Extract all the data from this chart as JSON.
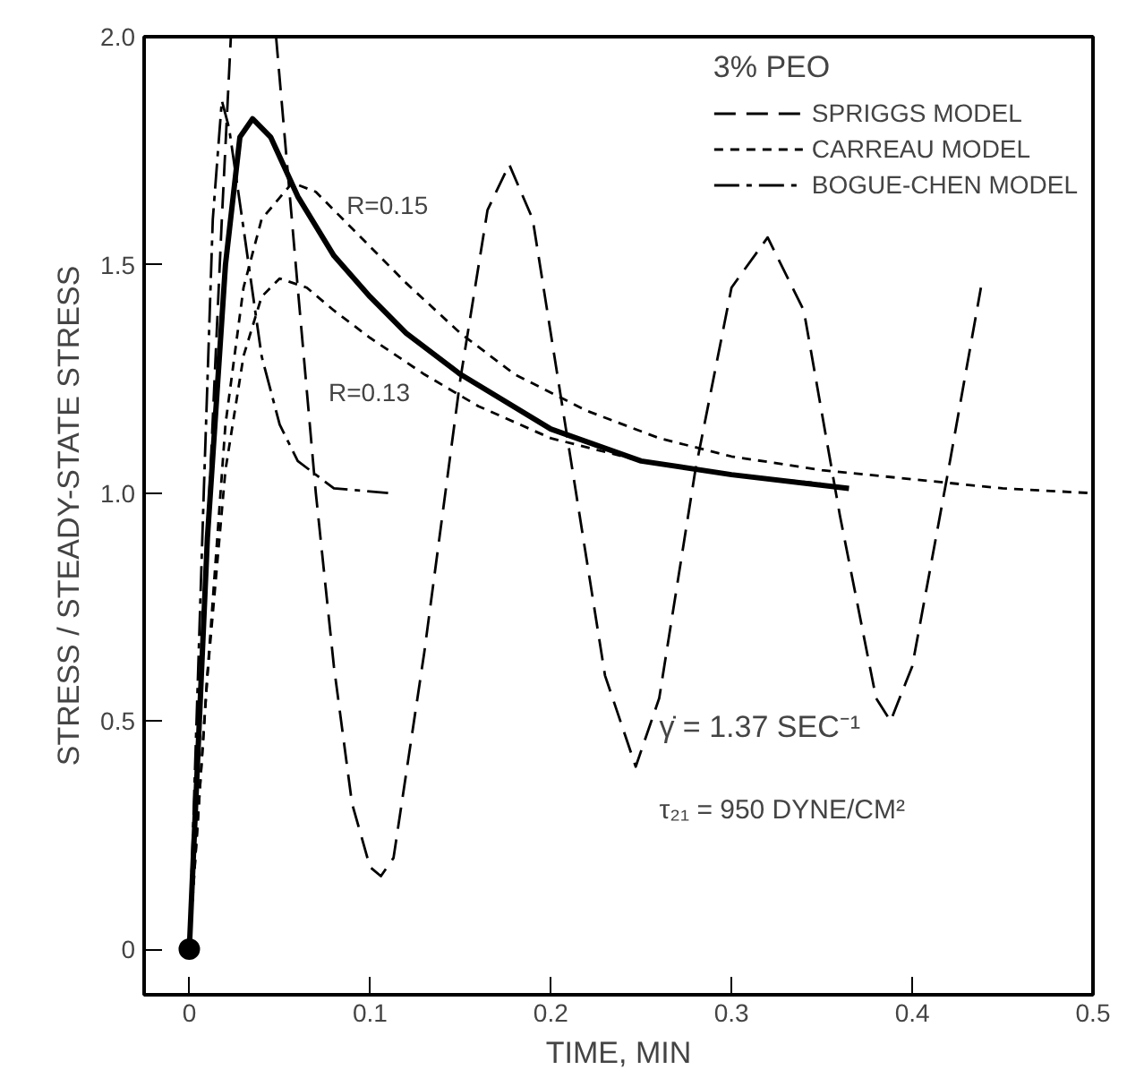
{
  "chart_data": {
    "type": "line",
    "xlabel": "TIME, MIN",
    "ylabel": "STRESS / STEADY-STATE STRESS",
    "legend_title": "3% PEO",
    "xlim": [
      -0.025,
      0.5
    ],
    "ylim": [
      -0.1,
      2.0
    ],
    "xticks": [
      0,
      0.1,
      0.2,
      0.3,
      0.4,
      0.5
    ],
    "yticks": [
      0,
      0.5,
      {
        "value": 1,
        "label": "1.0"
      },
      1.5,
      {
        "value": 2,
        "label": "2.0"
      }
    ],
    "grid": false,
    "legend": "top right",
    "series": [
      {
        "name": "SPRIGGS MODEL",
        "color": "#000000",
        "line_style": "dashed",
        "x": [
          0,
          0.01,
          0.018,
          0.023,
          0.035,
          0.048,
          0.06,
          0.07,
          0.08,
          0.09,
          0.1,
          0.106,
          0.113,
          0.13,
          0.15,
          0.165,
          0.177,
          0.19,
          0.21,
          0.23,
          0.247,
          0.26,
          0.28,
          0.3,
          0.32,
          0.34,
          0.36,
          0.38,
          0.388,
          0.4,
          0.42,
          0.438
        ],
        "values": [
          0,
          0.9,
          1.6,
          2.0,
          null,
          2.0,
          1.45,
          1.0,
          0.62,
          0.32,
          0.18,
          0.16,
          0.2,
          0.65,
          1.25,
          1.62,
          1.72,
          1.6,
          1.1,
          0.6,
          0.4,
          0.55,
          1.05,
          1.45,
          1.56,
          1.4,
          0.95,
          0.55,
          0.5,
          0.62,
          1.05,
          1.45
        ]
      },
      {
        "name": "CARREAU MODEL",
        "color": "#000000",
        "line_style": "dotted",
        "x": [
          0,
          0.01,
          0.02,
          0.03,
          0.04,
          0.057,
          0.07,
          0.09,
          0.12,
          0.15,
          0.18,
          0.22,
          0.26,
          0.3,
          0.35,
          0.4,
          0.45,
          0.497
        ],
        "values": [
          0,
          0.6,
          1.15,
          1.45,
          1.6,
          1.68,
          1.66,
          1.58,
          1.46,
          1.35,
          1.26,
          1.18,
          1.12,
          1.08,
          1.05,
          1.03,
          1.01,
          1.0
        ]
      },
      {
        "name": "BOGUE-CHEN MODEL",
        "color": "#000000",
        "line_style": "dashdot",
        "x": [
          0,
          0.008,
          0.013,
          0.018,
          0.022,
          0.03,
          0.04,
          0.05,
          0.06,
          0.07,
          0.08,
          0.11
        ],
        "values": [
          0,
          1.0,
          1.6,
          1.86,
          1.8,
          1.58,
          1.3,
          1.15,
          1.07,
          1.04,
          1.01,
          1.0
        ]
      },
      {
        "color": "#000000",
        "line_style": "dotted",
        "x": [
          0,
          0.01,
          0.02,
          0.03,
          0.04,
          0.05,
          0.065,
          0.08,
          0.1,
          0.13,
          0.16,
          0.2,
          0.25,
          0.3,
          0.35
        ],
        "values": [
          0,
          0.6,
          1.05,
          1.3,
          1.43,
          1.47,
          1.45,
          1.4,
          1.34,
          1.26,
          1.19,
          1.12,
          1.07,
          1.04,
          1.02
        ]
      },
      {
        "color": "#000000",
        "line_style": "solid",
        "x": [
          0,
          0.01,
          0.02,
          0.028,
          0.035,
          0.045,
          0.06,
          0.08,
          0.1,
          0.12,
          0.15,
          0.2,
          0.25,
          0.3,
          0.365
        ],
        "values": [
          0,
          0.9,
          1.5,
          1.78,
          1.82,
          1.78,
          1.65,
          1.52,
          1.43,
          1.35,
          1.26,
          1.14,
          1.07,
          1.04,
          1.01
        ]
      },
      {
        "type": "scatter",
        "marker": "circle",
        "color": "#000000",
        "x": [
          0
        ],
        "values": [
          0
        ]
      }
    ],
    "annotations": [
      "R=0.15",
      "R=0.13",
      "γ̇ = 1.37 SEC⁻¹",
      "τ₂₁ = 950 DYNE/CM²"
    ]
  }
}
